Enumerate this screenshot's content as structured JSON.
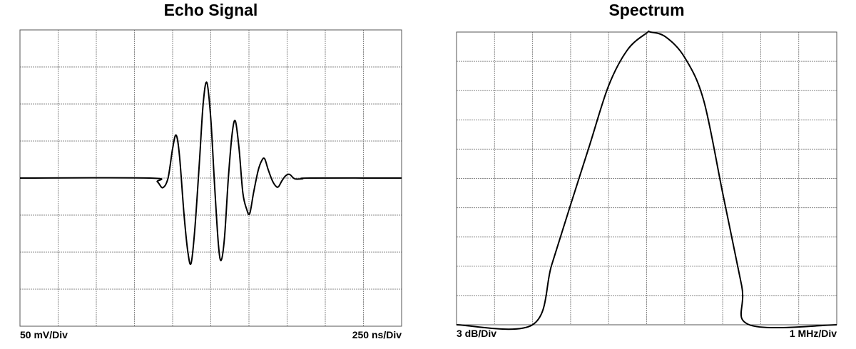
{
  "chart_data": [
    {
      "type": "line",
      "title": "Echo Signal",
      "y_label": "50 mV/Div",
      "x_label": "250 ns/Div",
      "x": [
        0,
        850,
        900,
        935,
        970,
        1000,
        1023,
        1045,
        1075,
        1100,
        1121,
        1145,
        1175,
        1200,
        1224,
        1250,
        1275,
        1300,
        1318,
        1340,
        1365,
        1390,
        1411,
        1435,
        1460,
        1485,
        1505,
        1530,
        1560,
        1585,
        1603,
        1625,
        1650,
        1672,
        1692,
        1715,
        1740,
        1766,
        1800,
        1850,
        1900,
        2500
      ],
      "values": [
        0,
        0,
        -5,
        -13,
        0,
        40,
        58,
        30,
        -50,
        -100,
        -115,
        -70,
        20,
        100,
        129,
        80,
        -10,
        -90,
        -111,
        -80,
        0,
        60,
        77,
        40,
        -20,
        -42,
        -48,
        -20,
        10,
        24,
        26,
        12,
        -2,
        -10,
        -12,
        -4,
        3,
        5,
        -1,
        -1,
        0,
        0
      ],
      "color": "#000000",
      "xlim": [
        0,
        2500
      ],
      "xticks": [
        0,
        250,
        500,
        750,
        1000,
        1250,
        1500,
        1750,
        2000,
        2250,
        2500
      ],
      "ylim": [
        -200,
        200
      ],
      "yticks": [
        -200,
        -150,
        -100,
        -50,
        0,
        50,
        100,
        150,
        200
      ],
      "grid": true
    },
    {
      "type": "line",
      "title": "Spectrum",
      "y_label": "3 dB/Div",
      "x_label": "1 MHz/Div",
      "x": [
        0,
        2,
        2.5,
        3,
        3.5,
        4,
        4.5,
        5,
        5.1,
        5.5,
        6,
        6.5,
        7,
        7.5,
        7.7,
        10
      ],
      "values": [
        -30,
        -30,
        -23.9,
        -17.7,
        -11.6,
        -5.5,
        -1.8,
        -0.1,
        0,
        -0.5,
        -2.6,
        -7,
        -16.5,
        -26,
        -30,
        -30
      ],
      "color": "#000000",
      "xlim": [
        0,
        10
      ],
      "xticks": [
        0,
        1,
        2,
        3,
        4,
        5,
        6,
        7,
        8,
        9,
        10
      ],
      "ylim": [
        -30,
        0
      ],
      "yticks": [
        -30,
        -27,
        -24,
        -21,
        -18,
        -15,
        -12,
        -9,
        -6,
        -3,
        0
      ],
      "grid": true
    }
  ]
}
